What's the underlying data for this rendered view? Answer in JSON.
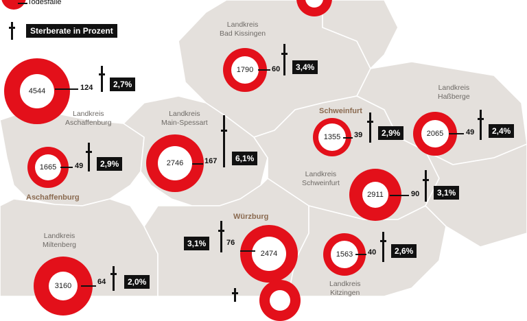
{
  "legend": {
    "deaths_label": "Todesfälle",
    "rate_label": "Sterberate in Prozent"
  },
  "regions": [
    {
      "id": "lk-bad-kissingen",
      "label": "Landkreis\nBad Kissingen",
      "total": 1790,
      "deaths": 60,
      "rate": "3,4%",
      "icon": "cross-icon"
    },
    {
      "id": "lk-aschaffenburg",
      "label": "Landkreis\nAschaffenburg",
      "total": 4544,
      "deaths": 124,
      "rate": "2,7%",
      "icon": "cross-icon"
    },
    {
      "id": "lk-hassberge",
      "label": "Landkreis\nHaßberge",
      "total": 2065,
      "deaths": 49,
      "rate": "2,4%",
      "icon": "cross-icon"
    },
    {
      "id": "lk-main-spessart",
      "label": "Landkreis\nMain-Spessart",
      "total": 2746,
      "deaths": 167,
      "rate": "6,1%",
      "icon": "cross-icon"
    },
    {
      "id": "schweinfurt-city",
      "label": "Schweinfurt",
      "total": 1355,
      "deaths": 39,
      "rate": "2,9%",
      "icon": "cross-icon"
    },
    {
      "id": "aschaffenburg-city",
      "label": "Aschaffenburg",
      "total": 1665,
      "deaths": 49,
      "rate": "2,9%",
      "icon": "cross-icon"
    },
    {
      "id": "lk-schweinfurt",
      "label": "Landkreis\nSchweinfurt",
      "total": 2911,
      "deaths": 90,
      "rate": "3,1%",
      "icon": "cross-icon"
    },
    {
      "id": "wuerzburg-city",
      "label": "Würzburg",
      "total": 2474,
      "deaths": 76,
      "rate": "3,1%",
      "icon": "cross-icon"
    },
    {
      "id": "lk-kitzingen",
      "label": "Landkreis\nKitzingen",
      "total": 1563,
      "deaths": 40,
      "rate": "2,6%",
      "icon": "cross-icon"
    },
    {
      "id": "lk-miltenberg",
      "label": "Landkreis\nMiltenberg",
      "total": 3160,
      "deaths": 64,
      "rate": "2,0%",
      "icon": "cross-icon"
    }
  ],
  "colors": {
    "donut": "#e3101a",
    "map_fill": "#e4e0dc",
    "map_border": "#ffffff",
    "rate_box": "#111111"
  }
}
